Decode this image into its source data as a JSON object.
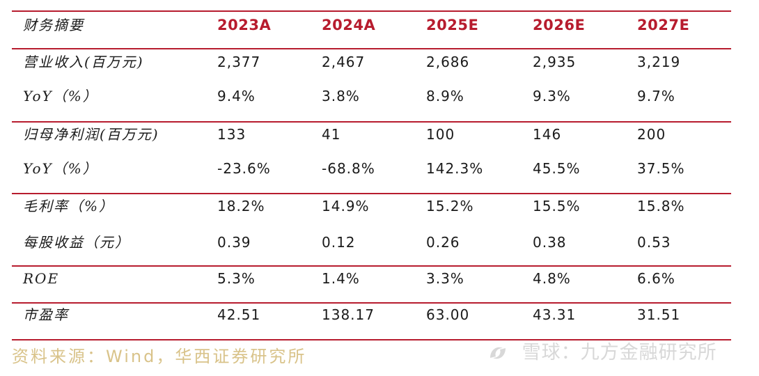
{
  "table": {
    "header": {
      "label": "财务摘要",
      "years": [
        "2023A",
        "2024A",
        "2025E",
        "2026E",
        "2027E"
      ]
    },
    "rows": [
      {
        "label": "营业收入(百万元)",
        "values": [
          "2,377",
          "2,467",
          "2,686",
          "2,935",
          "3,219"
        ]
      },
      {
        "label": "YoY（%）",
        "values": [
          "9.4%",
          "3.8%",
          "8.9%",
          "9.3%",
          "9.7%"
        ]
      },
      {
        "label": "归母净利润(百万元)",
        "values": [
          "133",
          "41",
          "100",
          "146",
          "200"
        ]
      },
      {
        "label": "YoY（%）",
        "values": [
          "-23.6%",
          "-68.8%",
          "142.3%",
          "45.5%",
          "37.5%"
        ]
      },
      {
        "label": "毛利率（%）",
        "values": [
          "18.2%",
          "14.9%",
          "15.2%",
          "15.5%",
          "15.8%"
        ]
      },
      {
        "label": "每股收益（元）",
        "values": [
          "0.39",
          "0.12",
          "0.26",
          "0.38",
          "0.53"
        ]
      },
      {
        "label": "ROE",
        "values": [
          "5.3%",
          "1.4%",
          "3.3%",
          "4.8%",
          "6.6%"
        ]
      },
      {
        "label": "市盈率",
        "values": [
          "42.51",
          "138.17",
          "63.00",
          "43.31",
          "31.51"
        ]
      }
    ]
  },
  "source": "资料来源：Wind，华西证券研究所",
  "watermark": "雪球：九方金融研究所",
  "colors": {
    "rule": "#b71c2e",
    "header_text": "#b71c2e",
    "source_text": "#d9c38a",
    "watermark_text": "#d8d8d8"
  }
}
